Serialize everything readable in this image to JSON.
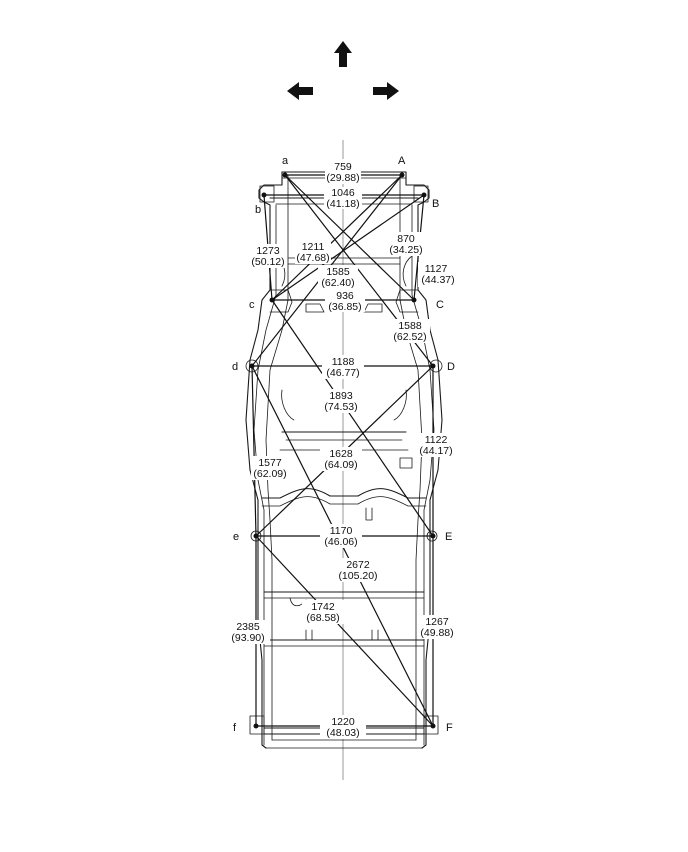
{
  "direction_arrows": [
    "arrow-up-icon",
    "arrow-left-icon",
    "arrow-right-icon"
  ],
  "points": {
    "a": "a",
    "A": "A",
    "b": "b",
    "B": "B",
    "c": "c",
    "C": "C",
    "d": "d",
    "D": "D",
    "e": "e",
    "E": "E",
    "f": "f",
    "F": "F"
  },
  "dimensions": {
    "aA": {
      "mm": "759",
      "in": "(29.88)"
    },
    "bB": {
      "mm": "1046",
      "in": "(41.18)"
    },
    "bc": {
      "mm": "1273",
      "in": "(50.12)"
    },
    "aD": {
      "mm": "1211",
      "in": "(47.68)"
    },
    "BC": {
      "mm": "870",
      "in": "(34.25)"
    },
    "Ac": {
      "mm": "1585",
      "in": "(62.40)"
    },
    "cC": {
      "mm": "936",
      "in": "(36.85)"
    },
    "BC2": {
      "mm": "1127",
      "in": "(44.37)"
    },
    "aC": {
      "mm": "1588",
      "in": "(62.52)"
    },
    "dD": {
      "mm": "1188",
      "in": "(46.77)"
    },
    "cE": {
      "mm": "1893",
      "in": "(74.53)"
    },
    "DE": {
      "mm": "1122",
      "in": "(44.17)"
    },
    "dE": {
      "mm": "1628",
      "in": "(64.09)"
    },
    "de": {
      "mm": "1577",
      "in": "(62.09)"
    },
    "eE": {
      "mm": "1170",
      "in": "(46.06)"
    },
    "dF": {
      "mm": "2672",
      "in": "(105.20)"
    },
    "eF": {
      "mm": "1742",
      "in": "(68.58)"
    },
    "ef": {
      "mm": "2385",
      "in": "(93.90)"
    },
    "EF": {
      "mm": "1267",
      "in": "(49.88)"
    },
    "fF": {
      "mm": "1220",
      "in": "(48.03)"
    }
  }
}
